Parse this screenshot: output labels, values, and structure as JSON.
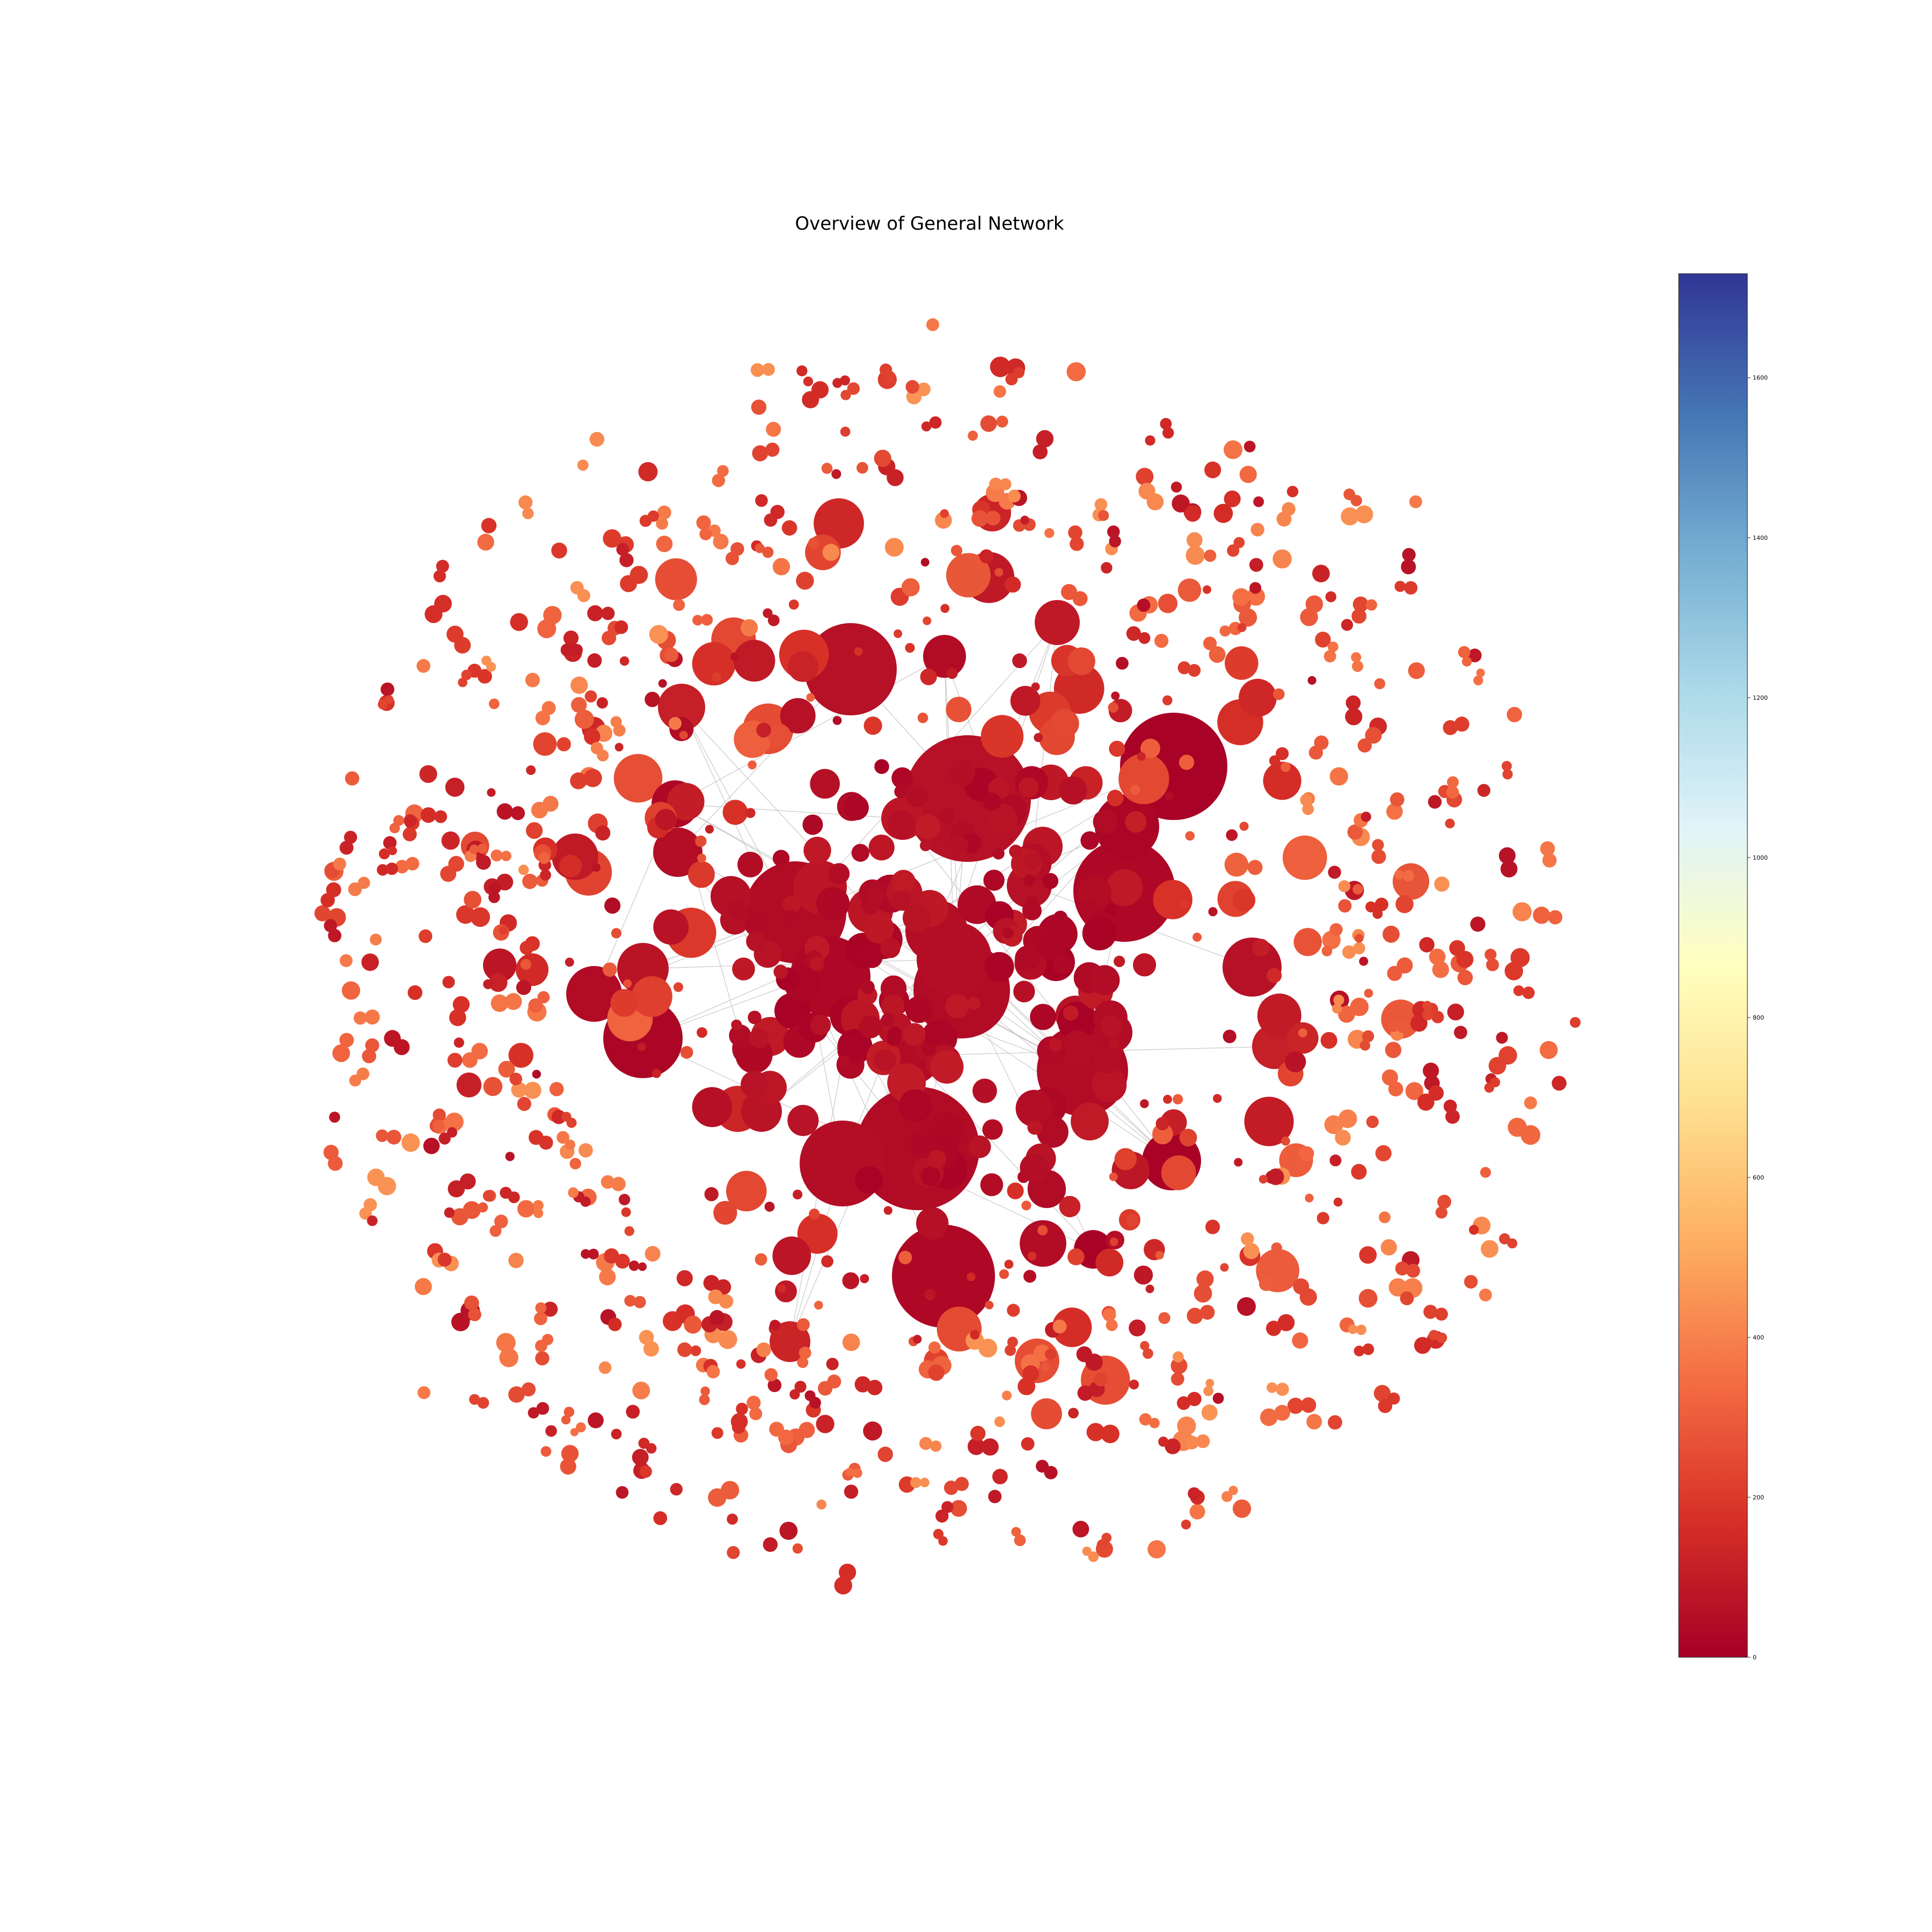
{
  "title": "Overview of General Network",
  "colorbar": {
    "colormap": "RdYlBu",
    "range": [
      0,
      1730
    ],
    "ticks": [
      "0",
      "200",
      "400",
      "600",
      "800",
      "1000",
      "1200",
      "1400",
      "1600"
    ],
    "stops": [
      "#a50026",
      "#d73027",
      "#f46d43",
      "#fdae61",
      "#fee090",
      "#ffffbf",
      "#e0f3f8",
      "#abd9e9",
      "#74add1",
      "#4575b4",
      "#313695"
    ]
  },
  "chart_data": {
    "type": "network",
    "title": "Overview of General Network",
    "color_scale": {
      "min": 0,
      "max": 1730,
      "colormap": "RdYlBu"
    },
    "node_color_value_range": [
      0,
      450
    ],
    "approx_node_count": 1100,
    "layout": "hub clusters in the center, many small low-degree nodes in a surrounding ring",
    "edges": "faint light-grey lines visible between central hub nodes"
  }
}
